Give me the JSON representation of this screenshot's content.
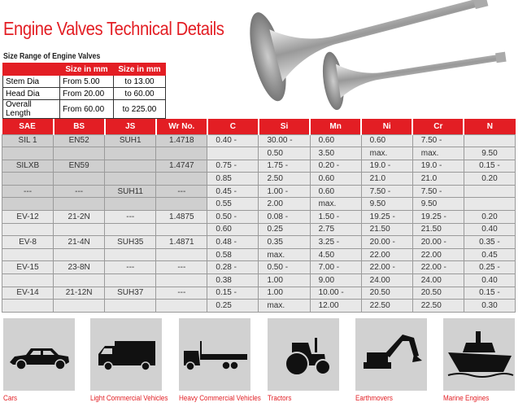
{
  "title": "Engine Valves Technical Details",
  "size_range": {
    "heading": "Size Range of Engine Valves",
    "headers": [
      "",
      "Size in mm",
      "Size in mm"
    ],
    "rows": [
      [
        "Stem Dia",
        "From 5.00",
        "to 13.00"
      ],
      [
        "Head Dia",
        "From 20.00",
        "to 60.00"
      ],
      [
        "Overall Length",
        "From 60.00",
        "to 225.00"
      ]
    ]
  },
  "specs": {
    "headers": [
      "SAE",
      "BS",
      "JS",
      "Wr No.",
      "C",
      "Si",
      "Mn",
      "Ni",
      "Cr",
      "N"
    ],
    "rows": [
      [
        "SIL 1",
        "EN52",
        "SUH1",
        "1.4718",
        "0.40 -",
        "30.00 -",
        "0.60",
        "0.60",
        "7.50 -",
        ""
      ],
      [
        "",
        "",
        "",
        "",
        "",
        "0.50",
        "3.50",
        "max.",
        "max.",
        "9.50"
      ],
      [
        "SILXB",
        "EN59",
        "",
        "1.4747",
        "0.75 -",
        "1.75 -",
        "0.20 -",
        "19.0 -",
        "19.0 -",
        "0.15 -"
      ],
      [
        "",
        "",
        "",
        "",
        "0.85",
        "2.50",
        "0.60",
        "21.0",
        "21.0",
        "0.20"
      ],
      [
        "---",
        "---",
        "SUH11",
        "---",
        "0.45 -",
        "1.00 -",
        "0.60",
        "7.50 -",
        "7.50 -",
        ""
      ],
      [
        "",
        "",
        "",
        "",
        "0.55",
        "2.00",
        "max.",
        "9.50",
        "9.50",
        ""
      ],
      [
        "EV-12",
        "21-2N",
        "---",
        "1.4875",
        "0.50 -",
        "0.08 -",
        "1.50 -",
        "19.25 -",
        "19.25 -",
        "0.20"
      ],
      [
        "",
        "",
        "",
        "",
        "0.60",
        "0.25",
        "2.75",
        "21.50",
        "21.50",
        "0.40"
      ],
      [
        "EV-8",
        "21-4N",
        "SUH35",
        "1.4871",
        "0.48 -",
        "0.35",
        "3.25 -",
        "20.00 -",
        "20.00 -",
        "0.35 -"
      ],
      [
        "",
        "",
        "",
        "",
        "0.58",
        "max.",
        "4.50",
        "22.00",
        "22.00",
        "0.45"
      ],
      [
        "EV-15",
        "23-8N",
        "---",
        "---",
        "0.28 -",
        "0.50 -",
        "7.00 -",
        "22.00 -",
        "22.00 -",
        "0.25 -"
      ],
      [
        "",
        "",
        "",
        "",
        "0.38",
        "1.00",
        "9.00",
        "24.00",
        "24.00",
        "0.40"
      ],
      [
        "EV-14",
        "21-12N",
        "SUH37",
        "---",
        "0.15 -",
        "1.00",
        "10.00 -",
        "20.50",
        "20.50",
        "0.15 -"
      ],
      [
        "",
        "",
        "",
        "",
        "0.25",
        "max.",
        "12.00",
        "22.50",
        "22.50",
        "0.30"
      ]
    ]
  },
  "applications": [
    {
      "label": "Cars",
      "icon": "car-icon"
    },
    {
      "label": "Light Commercial Vehicles",
      "icon": "light-truck-icon"
    },
    {
      "label": "Heavy Commercial Vehicles",
      "icon": "heavy-truck-icon"
    },
    {
      "label": "Tractors",
      "icon": "tractor-icon"
    },
    {
      "label": "Earthmovers",
      "icon": "excavator-icon"
    },
    {
      "label": "Marine Engines",
      "icon": "ship-icon"
    }
  ],
  "colors": {
    "accent": "#e31e24",
    "panel": "#d1d1d1"
  }
}
